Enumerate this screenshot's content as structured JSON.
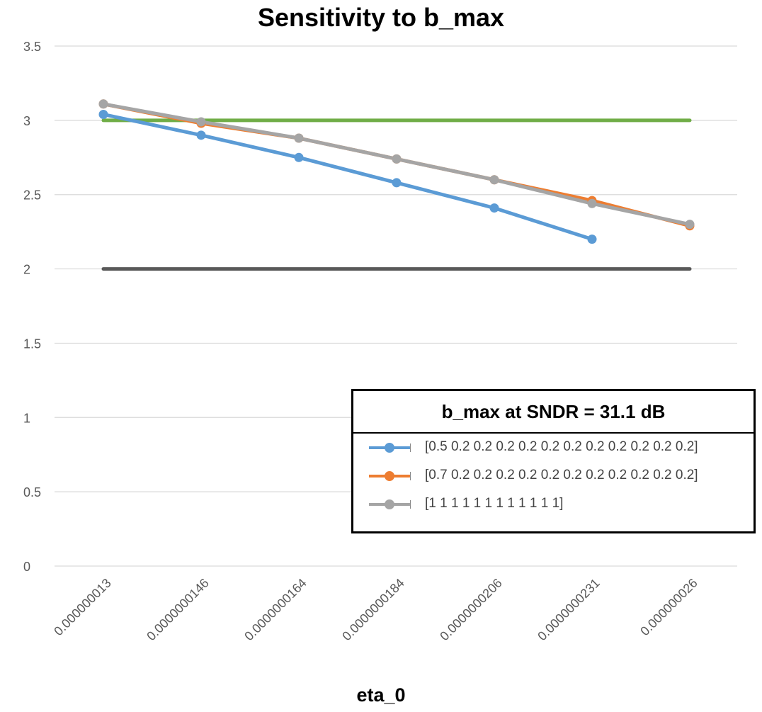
{
  "chart_data": {
    "type": "line",
    "title": "Sensitivity to b_max",
    "xlabel": "eta_0",
    "ylabel": "",
    "categories": [
      "0.000000013",
      "0.0000000146",
      "0.0000000164",
      "0.0000000184",
      "0.0000000206",
      "0.0000000231",
      "0.000000026"
    ],
    "ylim": [
      0,
      3.5
    ],
    "yticks": [
      "0",
      "0.5",
      "1",
      "1.5",
      "2",
      "2.5",
      "3",
      "3.5"
    ],
    "grid": true,
    "series": [
      {
        "name": "[0.5 0.2 0.2 0.2 0.2 0.2 0.2 0.2 0.2 0.2 0.2 0.2]",
        "color": "#5b9bd5",
        "markers": true,
        "values": [
          3.04,
          2.9,
          2.75,
          2.58,
          2.41,
          2.2,
          null
        ]
      },
      {
        "name": "[0.7 0.2 0.2 0.2 0.2 0.2 0.2 0.2 0.2 0.2 0.2 0.2]",
        "color": "#ed7d31",
        "markers": true,
        "values": [
          3.11,
          2.98,
          2.88,
          2.74,
          2.6,
          2.46,
          2.29
        ]
      },
      {
        "name": "[1 1 1 1 1 1 1 1 1 1 1 1]",
        "color": "#a5a5a5",
        "markers": true,
        "values": [
          3.11,
          2.99,
          2.88,
          2.74,
          2.6,
          2.44,
          2.3
        ]
      },
      {
        "color": "#70ad47",
        "markers": false,
        "values": [
          3,
          3,
          3,
          3,
          3,
          3,
          3
        ]
      },
      {
        "color": "#595959",
        "markers": false,
        "values": [
          2,
          2,
          2,
          2,
          2,
          2,
          2
        ]
      }
    ],
    "legend": {
      "title": "b_max at SNDR = 31.1 dB",
      "position": "bottom-right"
    }
  }
}
